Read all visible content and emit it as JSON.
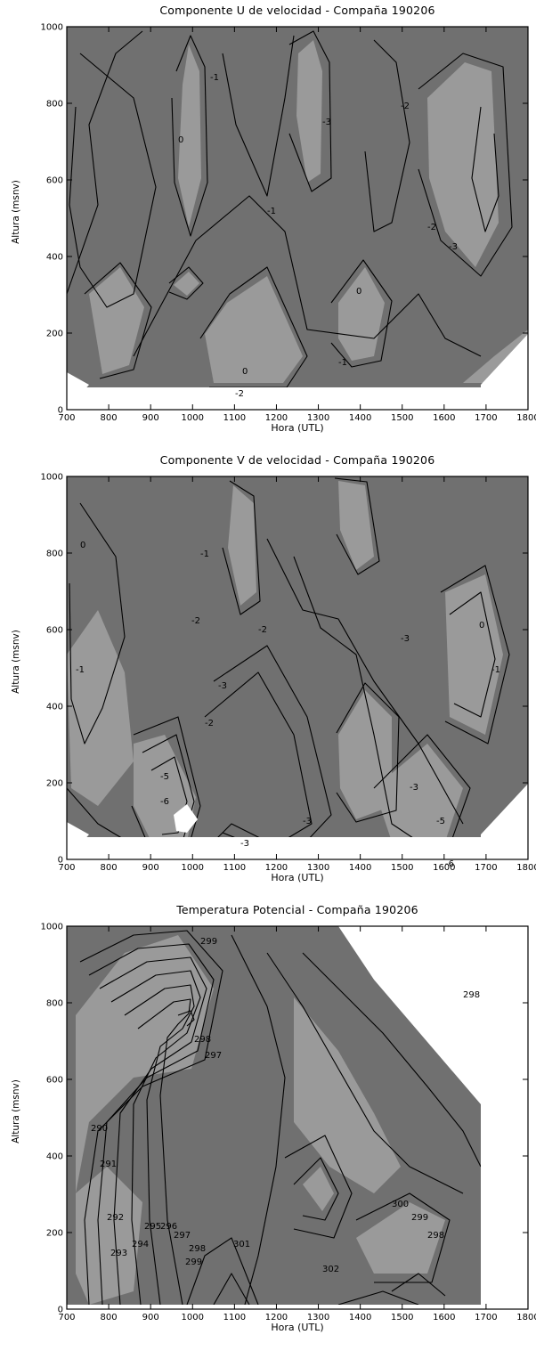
{
  "chart_data": [
    {
      "type": "contour",
      "title": "Componente U de velocidad - Compaña 190206",
      "xlabel": "Hora (UTL)",
      "ylabel": "Altura (msnv)",
      "xlim": [
        700,
        1800
      ],
      "ylim": [
        0,
        1000
      ],
      "xticks": [
        "700",
        "800",
        "900",
        "1000",
        "1100",
        "1200",
        "1300",
        "1400",
        "1500",
        "1600",
        "1700",
        "1800"
      ],
      "yticks": [
        "0",
        "200",
        "400",
        "600",
        "800",
        "1000"
      ],
      "levels_labeled": [
        "-2",
        "-1",
        "0",
        "-3",
        "-2",
        "-1",
        "0",
        "-1",
        "-2",
        "-3",
        "0"
      ],
      "data_extent": {
        "x": [
          700,
          1800
        ],
        "y": [
          50,
          1000
        ]
      },
      "fill_colors": {
        "dark": "#707070",
        "light": "#9a9a9a"
      }
    },
    {
      "type": "contour",
      "title": "Componente V de velocidad - Compaña 190206",
      "xlabel": "Hora (UTL)",
      "ylabel": "Altura (msnv)",
      "xlim": [
        700,
        1800
      ],
      "ylim": [
        0,
        1000
      ],
      "xticks": [
        "700",
        "800",
        "900",
        "1000",
        "1100",
        "1200",
        "1300",
        "1400",
        "1500",
        "1600",
        "1700",
        "1800"
      ],
      "yticks": [
        "0",
        "200",
        "400",
        "600",
        "800",
        "1000"
      ],
      "levels_labeled": [
        "0",
        "-1",
        "-1",
        "-2",
        "-2",
        "-2",
        "-3",
        "-3",
        "-5",
        "-6",
        "-3",
        "-3",
        "-3",
        "-6",
        "-5",
        "0",
        "-1"
      ],
      "data_extent": {
        "x": [
          700,
          1800
        ],
        "y": [
          50,
          1000
        ]
      },
      "fill_colors": {
        "dark": "#707070",
        "light": "#9a9a9a"
      }
    },
    {
      "type": "contour",
      "title": "Temperatura Potencial - Compaña 190206",
      "xlabel": "Hora (UTL)",
      "ylabel": "Altura (msnv)",
      "xlim": [
        700,
        1800
      ],
      "ylim": [
        0,
        1000
      ],
      "xticks": [
        "700",
        "800",
        "900",
        "1000",
        "1100",
        "1200",
        "1300",
        "1400",
        "1500",
        "1600",
        "1700",
        "1800"
      ],
      "yticks": [
        "0",
        "200",
        "400",
        "600",
        "800",
        "1000"
      ],
      "levels_labeled": [
        "299",
        "298",
        "297",
        "298",
        "290",
        "291",
        "292",
        "293",
        "294",
        "295",
        "296",
        "297",
        "298",
        "299",
        "301",
        "302",
        "300",
        "299",
        "298"
      ],
      "data_extent": {
        "x": [
          700,
          1700
        ],
        "y": [
          0,
          1000
        ]
      },
      "fill_colors": {
        "dark": "#707070",
        "light": "#9a9a9a"
      }
    }
  ]
}
